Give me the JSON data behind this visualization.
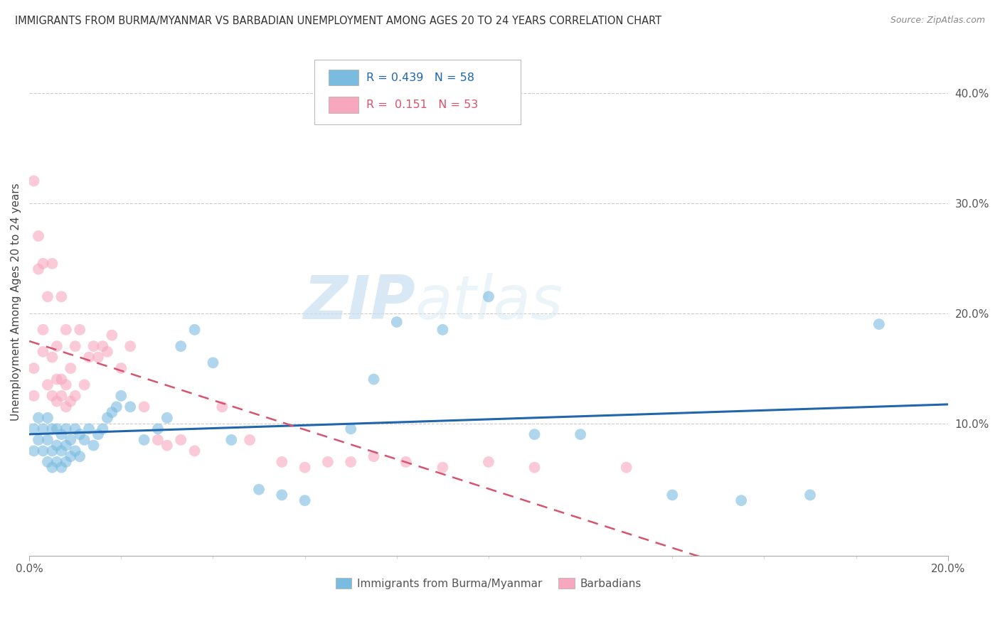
{
  "title": "IMMIGRANTS FROM BURMA/MYANMAR VS BARBADIAN UNEMPLOYMENT AMONG AGES 20 TO 24 YEARS CORRELATION CHART",
  "source": "Source: ZipAtlas.com",
  "ylabel": "Unemployment Among Ages 20 to 24 years",
  "ylabel_right_ticks": [
    "10.0%",
    "20.0%",
    "30.0%",
    "40.0%"
  ],
  "ylabel_right_vals": [
    0.1,
    0.2,
    0.3,
    0.4
  ],
  "xlim": [
    0.0,
    0.2
  ],
  "ylim": [
    -0.02,
    0.44
  ],
  "r_blue": 0.439,
  "n_blue": 58,
  "r_pink": 0.151,
  "n_pink": 53,
  "legend_label_blue": "Immigrants from Burma/Myanmar",
  "legend_label_pink": "Barbadians",
  "blue_color": "#7abce0",
  "pink_color": "#f8a8be",
  "blue_line_color": "#2166ac",
  "pink_line_color": "#d6546e",
  "watermark_zip": "ZIP",
  "watermark_atlas": "atlas",
  "blue_scatter_x": [
    0.001,
    0.001,
    0.002,
    0.002,
    0.003,
    0.003,
    0.004,
    0.004,
    0.004,
    0.005,
    0.005,
    0.005,
    0.006,
    0.006,
    0.006,
    0.007,
    0.007,
    0.007,
    0.008,
    0.008,
    0.008,
    0.009,
    0.009,
    0.01,
    0.01,
    0.011,
    0.011,
    0.012,
    0.013,
    0.014,
    0.015,
    0.016,
    0.017,
    0.018,
    0.019,
    0.02,
    0.022,
    0.025,
    0.028,
    0.03,
    0.033,
    0.036,
    0.04,
    0.044,
    0.05,
    0.055,
    0.06,
    0.07,
    0.08,
    0.09,
    0.1,
    0.12,
    0.14,
    0.155,
    0.17,
    0.185,
    0.11,
    0.075
  ],
  "blue_scatter_y": [
    0.075,
    0.095,
    0.085,
    0.105,
    0.075,
    0.095,
    0.065,
    0.085,
    0.105,
    0.06,
    0.075,
    0.095,
    0.065,
    0.08,
    0.095,
    0.06,
    0.075,
    0.09,
    0.065,
    0.08,
    0.095,
    0.07,
    0.085,
    0.075,
    0.095,
    0.07,
    0.09,
    0.085,
    0.095,
    0.08,
    0.09,
    0.095,
    0.105,
    0.11,
    0.115,
    0.125,
    0.115,
    0.085,
    0.095,
    0.105,
    0.17,
    0.185,
    0.155,
    0.085,
    0.04,
    0.035,
    0.03,
    0.095,
    0.192,
    0.185,
    0.215,
    0.09,
    0.035,
    0.03,
    0.035,
    0.19,
    0.09,
    0.14
  ],
  "pink_scatter_x": [
    0.001,
    0.001,
    0.001,
    0.002,
    0.002,
    0.003,
    0.003,
    0.003,
    0.004,
    0.004,
    0.005,
    0.005,
    0.005,
    0.006,
    0.006,
    0.006,
    0.007,
    0.007,
    0.007,
    0.008,
    0.008,
    0.008,
    0.009,
    0.009,
    0.01,
    0.01,
    0.011,
    0.012,
    0.013,
    0.014,
    0.015,
    0.016,
    0.017,
    0.018,
    0.02,
    0.022,
    0.025,
    0.028,
    0.03,
    0.033,
    0.036,
    0.042,
    0.048,
    0.055,
    0.06,
    0.065,
    0.07,
    0.075,
    0.082,
    0.09,
    0.1,
    0.11,
    0.13
  ],
  "pink_scatter_y": [
    0.125,
    0.15,
    0.32,
    0.24,
    0.27,
    0.165,
    0.185,
    0.245,
    0.135,
    0.215,
    0.125,
    0.16,
    0.245,
    0.12,
    0.14,
    0.17,
    0.125,
    0.14,
    0.215,
    0.115,
    0.135,
    0.185,
    0.12,
    0.15,
    0.125,
    0.17,
    0.185,
    0.135,
    0.16,
    0.17,
    0.16,
    0.17,
    0.165,
    0.18,
    0.15,
    0.17,
    0.115,
    0.085,
    0.08,
    0.085,
    0.075,
    0.115,
    0.085,
    0.065,
    0.06,
    0.065,
    0.065,
    0.07,
    0.065,
    0.06,
    0.065,
    0.06,
    0.06
  ]
}
